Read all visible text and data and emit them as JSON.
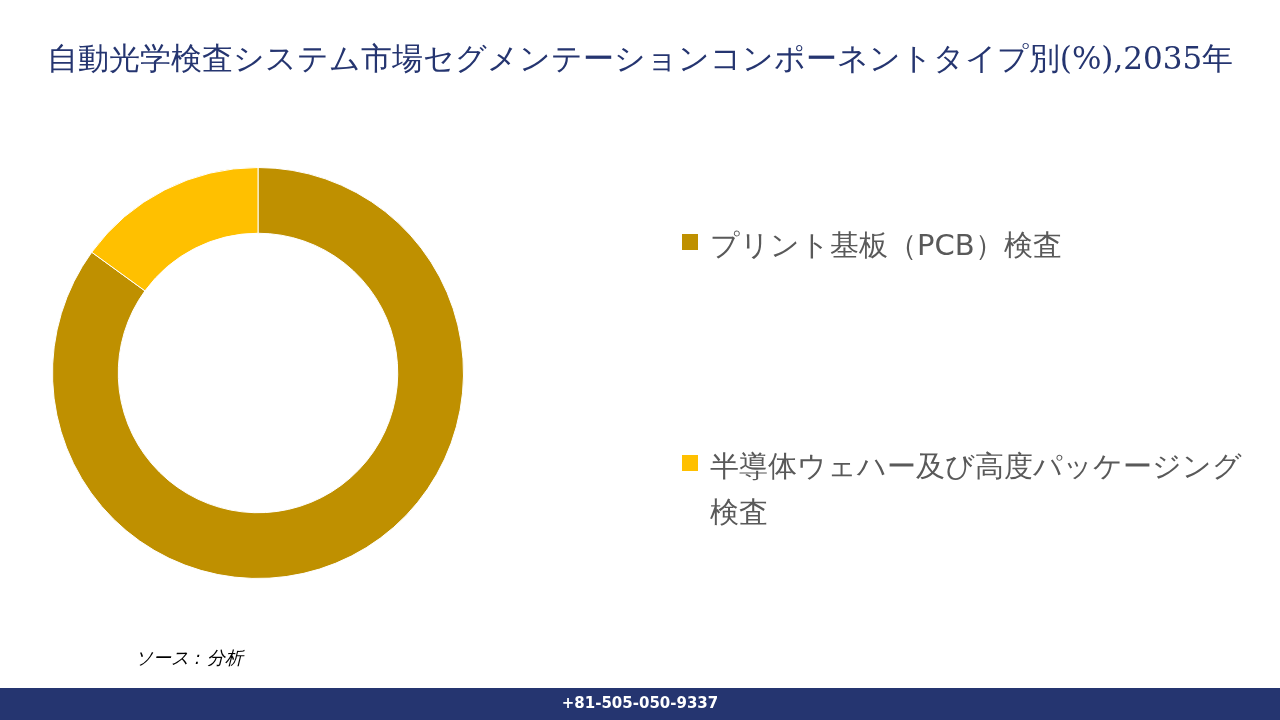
{
  "chart_data": {
    "type": "donut",
    "title": "自動光学検査システム市場セグメンテーションコンポーネントタイプ別(%),2035年",
    "categories": [
      "プリント基板（PCB）検査",
      "半導体ウェハー及び高度パッケージング検査"
    ],
    "values": [
      85,
      15
    ],
    "colors": [
      "#bf9000",
      "#ffc000"
    ],
    "legend": "right",
    "annotations": [
      "ソース : 分析",
      "+81-505-050-9337"
    ]
  }
}
